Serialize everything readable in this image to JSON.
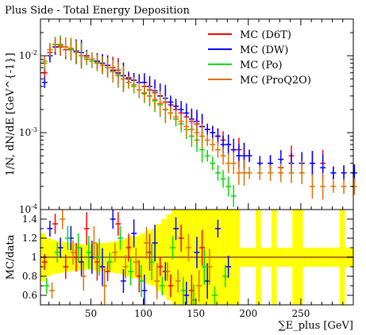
{
  "chart_data": [
    {
      "panel": "main",
      "type": "scatter",
      "title": "Plus Side - Total Energy Deposition",
      "ylabel": "1/N, dN/dE [GeV^{-1}]",
      "yscale": "log",
      "ylim": [
        0.0001,
        0.03
      ],
      "xlim": [
        2,
        300
      ],
      "yticks": [
        {
          "label": "10",
          "exp": "-4",
          "value": 0.0001
        },
        {
          "label": "10",
          "exp": "-3",
          "value": 0.001
        },
        {
          "label": "10",
          "exp": "-2",
          "value": 0.01
        }
      ],
      "legend_position": "top-right",
      "series": [
        {
          "name": "MC (D6T)",
          "color": "#ff0000",
          "x": [
            6,
            11,
            16,
            21,
            26,
            31,
            36,
            41,
            46,
            51,
            56,
            61,
            66,
            71,
            76,
            81,
            86,
            91,
            96,
            101,
            106,
            111,
            116,
            121,
            126,
            131,
            136,
            141,
            146,
            151,
            156,
            161,
            166,
            171,
            176,
            181,
            186,
            191,
            196,
            201,
            211,
            221,
            231,
            241,
            251,
            261,
            271,
            281,
            291,
            301
          ],
          "y": [
            0.006,
            0.011,
            0.013,
            0.013,
            0.012,
            0.012,
            0.011,
            0.01,
            0.0095,
            0.009,
            0.0085,
            0.008,
            0.0075,
            0.007,
            0.0065,
            0.0055,
            0.0052,
            0.0048,
            0.0045,
            0.004,
            0.0036,
            0.0033,
            0.003,
            0.0025,
            0.0023,
            0.002,
            0.0018,
            0.0016,
            0.0014,
            0.0013,
            0.0012,
            0.0011,
            0.001,
            0.0009,
            0.0008,
            0.0007,
            0.0006,
            0.0006,
            0.0005,
            0.0005,
            0.0004,
            0.0004,
            0.00035,
            0.0005,
            0.0004,
            0.0004,
            0.0004,
            0.0003,
            0.0003,
            0.0003
          ]
        },
        {
          "name": "MC (DW)",
          "color": "#0000ff",
          "x": [
            6,
            11,
            16,
            21,
            26,
            31,
            36,
            41,
            46,
            51,
            56,
            61,
            66,
            71,
            76,
            81,
            86,
            91,
            96,
            101,
            106,
            111,
            116,
            121,
            126,
            131,
            136,
            141,
            146,
            151,
            156,
            161,
            166,
            171,
            176,
            181,
            186,
            191,
            196,
            201,
            211,
            221,
            231,
            241,
            251,
            261,
            271,
            281,
            291,
            301
          ],
          "y": [
            0.0045,
            0.01,
            0.013,
            0.014,
            0.013,
            0.012,
            0.0115,
            0.011,
            0.01,
            0.009,
            0.0085,
            0.008,
            0.0075,
            0.0065,
            0.006,
            0.0055,
            0.005,
            0.0048,
            0.0045,
            0.0045,
            0.004,
            0.0035,
            0.003,
            0.0028,
            0.0025,
            0.0022,
            0.002,
            0.0018,
            0.0015,
            0.0014,
            0.0012,
            0.0011,
            0.001,
            0.0009,
            0.0007,
            0.0007,
            0.0006,
            0.0005,
            0.0005,
            0.0005,
            0.0004,
            0.0004,
            0.00045,
            0.0004,
            0.0004,
            0.0004,
            0.00035,
            0.0003,
            0.0003,
            0.0003
          ]
        },
        {
          "name": "MC (Po)",
          "color": "#00dd00",
          "x": [
            6,
            11,
            16,
            21,
            26,
            31,
            36,
            41,
            46,
            51,
            56,
            61,
            66,
            71,
            76,
            81,
            86,
            91,
            96,
            101,
            106,
            111,
            116,
            121,
            126,
            131,
            136,
            141,
            146,
            151,
            156,
            161,
            166,
            171,
            176,
            181,
            186
          ],
          "y": [
            0.008,
            0.012,
            0.014,
            0.014,
            0.013,
            0.012,
            0.011,
            0.01,
            0.009,
            0.0085,
            0.008,
            0.0075,
            0.007,
            0.0062,
            0.0055,
            0.005,
            0.0045,
            0.004,
            0.0036,
            0.0032,
            0.003,
            0.0026,
            0.0023,
            0.002,
            0.0018,
            0.0015,
            0.0013,
            0.0011,
            0.0009,
            0.0008,
            0.0006,
            0.0005,
            0.0004,
            0.0003,
            0.00025,
            0.0002,
            0.00015
          ]
        },
        {
          "name": "MC (ProQ2O)",
          "color": "#e07000",
          "x": [
            6,
            11,
            16,
            21,
            26,
            31,
            36,
            41,
            46,
            51,
            56,
            61,
            66,
            71,
            76,
            81,
            86,
            91,
            96,
            101,
            106,
            111,
            116,
            121,
            126,
            131,
            136,
            141,
            146,
            151,
            156,
            161,
            166,
            171,
            176,
            181,
            186,
            191,
            196,
            201,
            211,
            221,
            231,
            241,
            251,
            261,
            271,
            281,
            291,
            301
          ],
          "y": [
            0.0085,
            0.012,
            0.014,
            0.0135,
            0.013,
            0.0125,
            0.011,
            0.01,
            0.0095,
            0.009,
            0.0082,
            0.0075,
            0.007,
            0.0063,
            0.0058,
            0.005,
            0.0045,
            0.0042,
            0.0036,
            0.0033,
            0.003,
            0.0027,
            0.0024,
            0.002,
            0.0018,
            0.0016,
            0.0014,
            0.0012,
            0.0011,
            0.001,
            0.0009,
            0.0008,
            0.0007,
            0.0006,
            0.0005,
            0.0004,
            0.0004,
            0.0003,
            0.0003,
            0.0003,
            0.0003,
            0.0003,
            0.0003,
            0.0003,
            0.0003,
            0.0002,
            0.0002,
            0.0002,
            0.0002,
            0.0002
          ]
        }
      ]
    },
    {
      "panel": "ratio",
      "type": "scatter",
      "ylabel": "MC/data",
      "xlabel": "∑E_plus [GeV]",
      "ylim": [
        0.5,
        1.5
      ],
      "xlim": [
        2,
        300
      ],
      "xticks": [
        50,
        100,
        150,
        200,
        250
      ],
      "yticks": [
        0.6,
        0.8,
        1,
        1.2,
        1.4
      ],
      "reference_line": 1,
      "band_color": "#ffff00",
      "band": {
        "x": [
          2,
          7,
          12,
          17,
          22,
          27,
          32,
          37,
          42,
          47,
          52,
          57,
          62,
          67,
          72,
          77,
          82,
          87,
          92,
          97,
          102,
          107,
          112,
          117,
          122,
          127,
          132,
          137,
          142,
          147,
          152,
          157,
          162,
          167,
          172,
          177,
          182,
          187,
          192,
          197,
          202,
          207,
          212,
          217,
          222,
          227,
          232,
          237,
          242,
          247,
          252,
          257,
          262,
          267,
          272,
          277,
          282,
          287,
          292,
          297
        ],
        "lo": [
          0.75,
          0.8,
          0.82,
          0.83,
          0.84,
          0.85,
          0.86,
          0.86,
          0.87,
          0.87,
          0.86,
          0.85,
          0.85,
          0.84,
          0.83,
          0.82,
          0.8,
          0.78,
          0.78,
          0.75,
          0.72,
          0.7,
          0.65,
          0.6,
          0.55,
          0.5,
          0.45,
          0.42,
          0.4,
          0.35,
          0.3,
          0.3,
          0.5,
          0.5,
          0.5,
          0.5,
          0.5,
          0.5,
          0.9,
          0.9,
          0.9,
          0.5,
          0.9,
          0.9,
          0.5,
          0.9,
          0.9,
          0.9,
          0.5,
          0.5,
          0.9,
          0.9,
          0.9,
          0.9,
          0.9,
          0.9,
          0.9,
          0.5,
          0.9,
          0.9
        ],
        "hi": [
          1.25,
          1.2,
          1.18,
          1.17,
          1.16,
          1.15,
          1.14,
          1.14,
          1.13,
          1.13,
          1.14,
          1.15,
          1.15,
          1.16,
          1.17,
          1.18,
          1.2,
          1.22,
          1.22,
          1.25,
          1.28,
          1.3,
          1.35,
          1.4,
          1.45,
          1.5,
          1.5,
          1.5,
          1.5,
          1.5,
          1.5,
          1.5,
          1.5,
          1.5,
          1.5,
          1.5,
          1.5,
          1.5,
          1.1,
          1.1,
          1.1,
          1.5,
          1.1,
          1.1,
          1.5,
          1.1,
          1.1,
          1.1,
          1.5,
          1.5,
          1.1,
          1.1,
          1.1,
          1.1,
          1.1,
          1.1,
          1.1,
          1.5,
          1.1,
          1.1
        ]
      },
      "series": [
        {
          "name": "MC (D6T)",
          "color": "#ff0000",
          "x": [
            6,
            16,
            26,
            36,
            46,
            56,
            66,
            76,
            86,
            96,
            106,
            116,
            126,
            136,
            146,
            156
          ],
          "y": [
            0.95,
            1.35,
            0.9,
            1.0,
            1.3,
            0.95,
            0.85,
            1.35,
            1.1,
            0.8,
            1.05,
            0.9,
            0.7,
            1.2,
            0.65,
            1.1
          ]
        },
        {
          "name": "MC (DW)",
          "color": "#0000ff",
          "x": [
            11,
            21,
            31,
            41,
            51,
            61,
            71,
            81,
            91,
            101,
            111,
            121,
            131,
            141,
            151,
            161,
            171,
            181
          ],
          "y": [
            1.3,
            1.1,
            1.2,
            0.95,
            1.0,
            0.9,
            1.4,
            0.75,
            1.25,
            0.65,
            1.15,
            0.85,
            1.3,
            0.6,
            1.05,
            0.75,
            1.3,
            0.9
          ]
        },
        {
          "name": "MC (Po)",
          "color": "#00dd00",
          "x": [
            8,
            18,
            28,
            38,
            48,
            58,
            68,
            78,
            88,
            98,
            108,
            118,
            128,
            138,
            148,
            158,
            168,
            178
          ],
          "y": [
            0.7,
            1.05,
            1.2,
            1.1,
            1.05,
            1.0,
            0.95,
            1.2,
            0.85,
            0.75,
            0.95,
            0.7,
            1.1,
            0.65,
            0.55,
            0.9,
            0.6,
            0.8
          ]
        },
        {
          "name": "MC (ProQ2O)",
          "color": "#e07000",
          "x": [
            13,
            23,
            33,
            43,
            53,
            63,
            73,
            83,
            93,
            103,
            113,
            123,
            133,
            143,
            153,
            163
          ],
          "y": [
            0.65,
            1.4,
            1.05,
            0.8,
            1.15,
            0.7,
            1.05,
            0.9,
            0.95,
            1.15,
            0.75,
            0.85,
            0.75,
            1.1,
            0.7,
            0.9
          ]
        }
      ]
    }
  ]
}
